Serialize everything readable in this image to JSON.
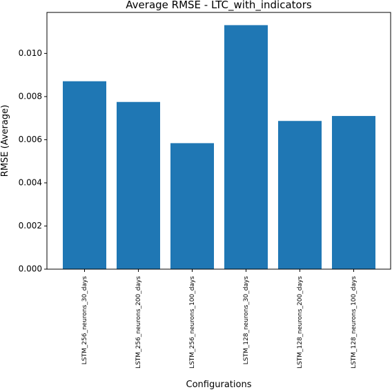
{
  "chart_data": {
    "type": "bar",
    "title": "Average RMSE - LTC_with_indicators",
    "xlabel": "Configurations",
    "ylabel": "RMSE (Average)",
    "categories": [
      "LSTM_256_neurons_30_days",
      "LSTM_256_neurons_200_days",
      "LSTM_256_neurons_100_days",
      "LSTM_128_neurons_30_days",
      "LSTM_128_neurons_200_days",
      "LSTM_128_neurons_100_days"
    ],
    "values": [
      0.00871,
      0.00775,
      0.00584,
      0.01131,
      0.00687,
      0.0071
    ],
    "ylim": [
      0,
      0.0119
    ],
    "yticks": [
      0.0,
      0.002,
      0.004,
      0.006,
      0.008,
      0.01
    ],
    "ytick_labels": [
      "0.000",
      "0.002",
      "0.004",
      "0.006",
      "0.008",
      "0.010"
    ],
    "bar_color": "#1f77b4",
    "grid": false,
    "legend": "none"
  }
}
